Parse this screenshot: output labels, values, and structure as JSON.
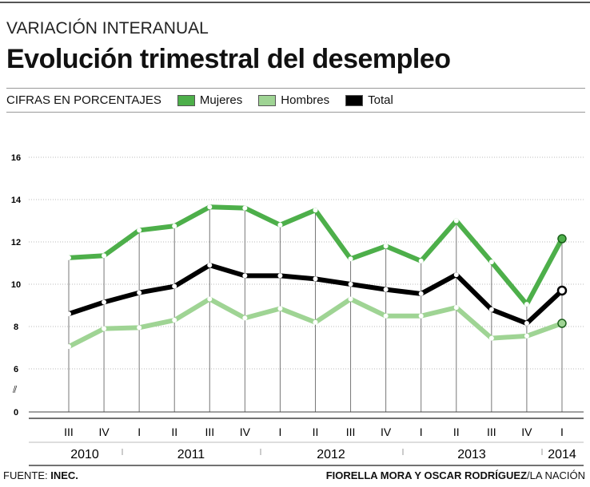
{
  "kicker": "VARIACIÓN INTERANUAL",
  "title": "Evolución trimestral del desempleo",
  "footer": {
    "source_label": "FUENTE:",
    "source": "INEC.",
    "credit": "FIORELLA MORA Y OSCAR RODRÍGUEZ",
    "credit_org": "/LA NACIÓN"
  },
  "chart_data": {
    "type": "line",
    "subtitle": "CIFRAS EN PORCENTAJES",
    "x": [
      "III",
      "IV",
      "I",
      "II",
      "III",
      "IV",
      "I",
      "II",
      "III",
      "IV",
      "I",
      "II",
      "III",
      "IV",
      "I"
    ],
    "years": [
      "2010",
      "2011",
      "2012",
      "2013",
      "2014"
    ],
    "yticks": [
      0,
      6,
      8,
      10,
      12,
      14,
      16
    ],
    "ylim": [
      0,
      16
    ],
    "axis_break": true,
    "series": [
      {
        "name": "Mujeres",
        "color": "#4daf4a",
        "values": [
          11.25,
          11.35,
          12.55,
          12.75,
          13.65,
          13.6,
          12.8,
          13.5,
          11.2,
          11.8,
          11.1,
          13.0,
          11.05,
          9.05,
          12.15
        ]
      },
      {
        "name": "Hombres",
        "color": "#9fd494",
        "values": [
          7.05,
          7.9,
          7.95,
          8.3,
          9.3,
          8.4,
          8.85,
          8.2,
          9.3,
          8.5,
          8.5,
          8.9,
          7.45,
          7.55,
          8.15
        ]
      },
      {
        "name": "Total",
        "color": "#000000",
        "values": [
          8.6,
          9.15,
          9.6,
          9.9,
          10.9,
          10.4,
          10.4,
          10.25,
          10.0,
          9.75,
          9.55,
          10.45,
          8.8,
          8.15,
          9.7
        ]
      }
    ]
  }
}
